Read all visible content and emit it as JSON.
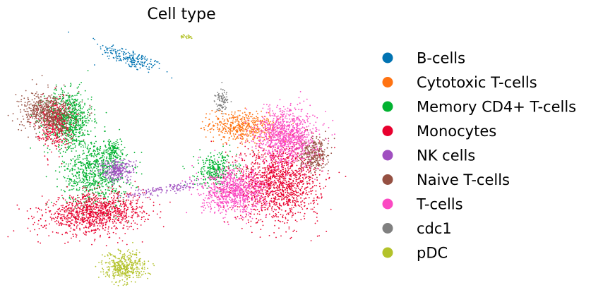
{
  "chart_data": {
    "type": "scatter",
    "title": "Cell type",
    "xlabel": "",
    "ylabel": "",
    "axes_visible": false,
    "grid": false,
    "legend_position": "right",
    "series": [
      {
        "name": "B-cells",
        "color": "#0173b2",
        "clusters": [
          {
            "cx": 0.25,
            "cy": 0.92,
            "sx": 0.06,
            "sy": 0.02,
            "rot": -28,
            "n": 200
          }
        ]
      },
      {
        "name": "Cytotoxic T-cells",
        "color": "#ff7312",
        "clusters": [
          {
            "cx": 0.63,
            "cy": 0.6,
            "sx": 0.055,
            "sy": 0.035,
            "rot": -10,
            "n": 500
          }
        ]
      },
      {
        "name": "Memory CD4+ T-cells",
        "color": "#02b231",
        "clusters": [
          {
            "cx": 0.04,
            "cy": 0.64,
            "sx": 0.04,
            "sy": 0.065,
            "rot": 0,
            "n": 750
          },
          {
            "cx": 0.13,
            "cy": 0.39,
            "sx": 0.055,
            "sy": 0.08,
            "rot": 0,
            "n": 800
          },
          {
            "cx": 0.54,
            "cy": 0.4,
            "sx": 0.035,
            "sy": 0.04,
            "rot": 0,
            "n": 300
          },
          {
            "cx": 0.19,
            "cy": 0.49,
            "sx": 0.015,
            "sy": 0.025,
            "rot": 0,
            "n": 110
          }
        ]
      },
      {
        "name": "Monocytes",
        "color": "#e8002e",
        "clusters": [
          {
            "cx": 0.13,
            "cy": 0.2,
            "sx": 0.085,
            "sy": 0.045,
            "rot": 8,
            "n": 1100
          },
          {
            "cx": 0.75,
            "cy": 0.34,
            "sx": 0.07,
            "sy": 0.09,
            "rot": 0,
            "n": 1400
          },
          {
            "cx": -0.01,
            "cy": 0.62,
            "sx": 0.028,
            "sy": 0.055,
            "rot": 0,
            "n": 380
          }
        ]
      },
      {
        "name": "NK cells",
        "color": "#a04fc0",
        "clusters": [
          {
            "cx": 0.205,
            "cy": 0.4,
            "sx": 0.03,
            "sy": 0.025,
            "rot": 0,
            "n": 260
          },
          {
            "cx": 0.36,
            "cy": 0.31,
            "sx": 0.07,
            "sy": 0.012,
            "rot": 12,
            "n": 140
          }
        ]
      },
      {
        "name": "Naive T-cells",
        "color": "#955042",
        "clusters": [
          {
            "cx": -0.03,
            "cy": 0.67,
            "sx": 0.045,
            "sy": 0.045,
            "rot": 0,
            "n": 560
          },
          {
            "cx": 0.87,
            "cy": 0.47,
            "sx": 0.025,
            "sy": 0.04,
            "rot": 0,
            "n": 330
          }
        ]
      },
      {
        "name": "T-cells",
        "color": "#fb49c2",
        "clusters": [
          {
            "cx": 0.78,
            "cy": 0.56,
            "sx": 0.05,
            "sy": 0.065,
            "rot": 0,
            "n": 1000
          },
          {
            "cx": 0.6,
            "cy": 0.3,
            "sx": 0.055,
            "sy": 0.05,
            "rot": 0,
            "n": 850
          }
        ]
      },
      {
        "name": "cdc1",
        "color": "#808080",
        "clusters": [
          {
            "cx": 0.56,
            "cy": 0.73,
            "sx": 0.012,
            "sy": 0.025,
            "rot": 0,
            "n": 90
          }
        ]
      },
      {
        "name": "pDC",
        "color": "#b3c22a",
        "clusters": [
          {
            "cx": 0.23,
            "cy": -0.05,
            "sx": 0.035,
            "sy": 0.035,
            "rot": 0,
            "n": 420
          },
          {
            "cx": 0.44,
            "cy": 1.02,
            "sx": 0.012,
            "sy": 0.006,
            "rot": 0,
            "n": 25
          }
        ]
      }
    ],
    "x_range": [
      -0.12,
      0.98
    ],
    "y_range": [
      -0.12,
      1.06
    ]
  }
}
